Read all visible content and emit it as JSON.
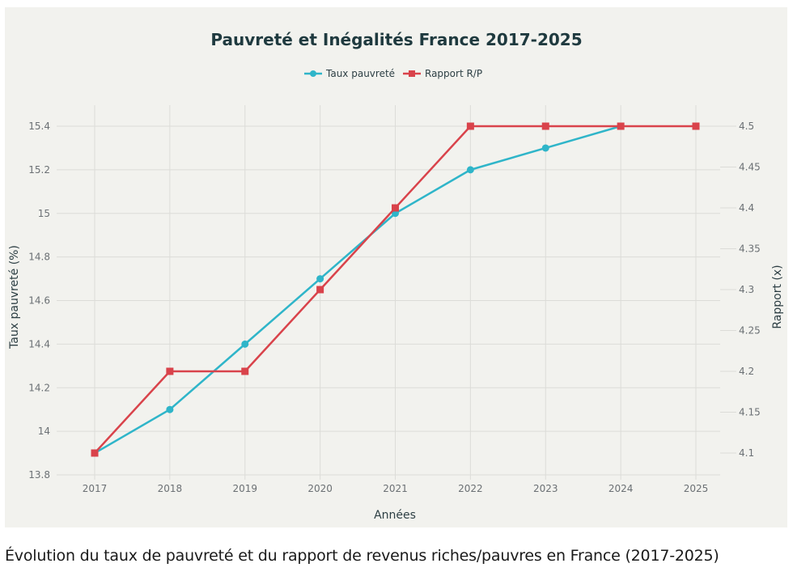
{
  "chart_data": {
    "type": "line",
    "title": "Pauvreté et Inégalités France 2017-2025",
    "xlabel": "Années",
    "ylabel": "Taux pauvreté (%)",
    "y2label": "Rapport (x)",
    "categories": [
      "2017",
      "2018",
      "2019",
      "2020",
      "2021",
      "2022",
      "2023",
      "2024",
      "2025"
    ],
    "y_ticks": [
      "13.8",
      "14",
      "14.2",
      "14.4",
      "14.6",
      "14.8",
      "15",
      "15.2",
      "15.4"
    ],
    "y2_ticks": [
      "4.1",
      "4.15",
      "4.2",
      "4.25",
      "4.3",
      "4.35",
      "4.4",
      "4.45",
      "4.5"
    ],
    "ylim": [
      13.8,
      15.5
    ],
    "y2lim": [
      4.07,
      4.53
    ],
    "grid": true,
    "legend_position": "top-center",
    "series": [
      {
        "name": "Taux pauvreté",
        "axis": "left",
        "color": "#2fb5c9",
        "marker": "circle",
        "values": [
          13.9,
          14.1,
          14.4,
          14.7,
          15.0,
          15.2,
          15.3,
          15.4,
          null
        ]
      },
      {
        "name": "Rapport R/P",
        "axis": "right",
        "color": "#d9434b",
        "marker": "square",
        "values": [
          4.1,
          4.2,
          4.2,
          4.3,
          4.4,
          4.5,
          4.5,
          4.5,
          4.5
        ]
      }
    ]
  },
  "caption": "Évolution du taux de pauvreté et du rapport de revenus riches/pauvres en France (2017-2025)"
}
